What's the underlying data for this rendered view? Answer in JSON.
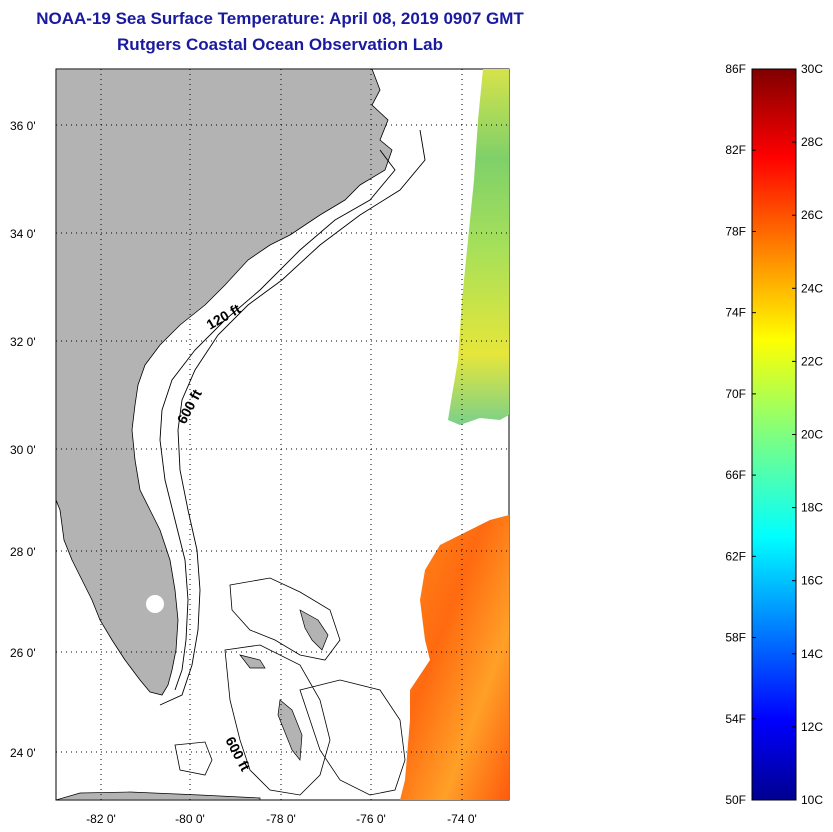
{
  "header": {
    "title": "NOAA-19 Sea Surface Temperature:  April 08, 2019 0907 GMT",
    "subtitle": "Rutgers Coastal Ocean Observation Lab"
  },
  "map": {
    "lat_labels": [
      "36 0'",
      "34 0'",
      "32 0'",
      "30 0'",
      "28 0'",
      "26 0'",
      "24 0'"
    ],
    "lon_labels": [
      "-82 0'",
      "-80 0'",
      "-78 0'",
      "-76 0'",
      "-74 0'"
    ],
    "contours": {
      "shelf_label": "120 ft",
      "slope_label": "600 ft",
      "bahamas_label": "600 ft"
    }
  },
  "colorbar": {
    "fahrenheit_labels": [
      "86F",
      "82F",
      "78F",
      "74F",
      "70F",
      "66F",
      "62F",
      "58F",
      "54F",
      "50F"
    ],
    "celsius_labels": [
      "30C",
      "28C",
      "26C",
      "24C",
      "22C",
      "20C",
      "18C",
      "16C",
      "14C",
      "12C",
      "10C"
    ]
  },
  "colors": {
    "title": "#1a1aa0",
    "land": "#b3b3b3",
    "ocean": "#ffffff"
  }
}
